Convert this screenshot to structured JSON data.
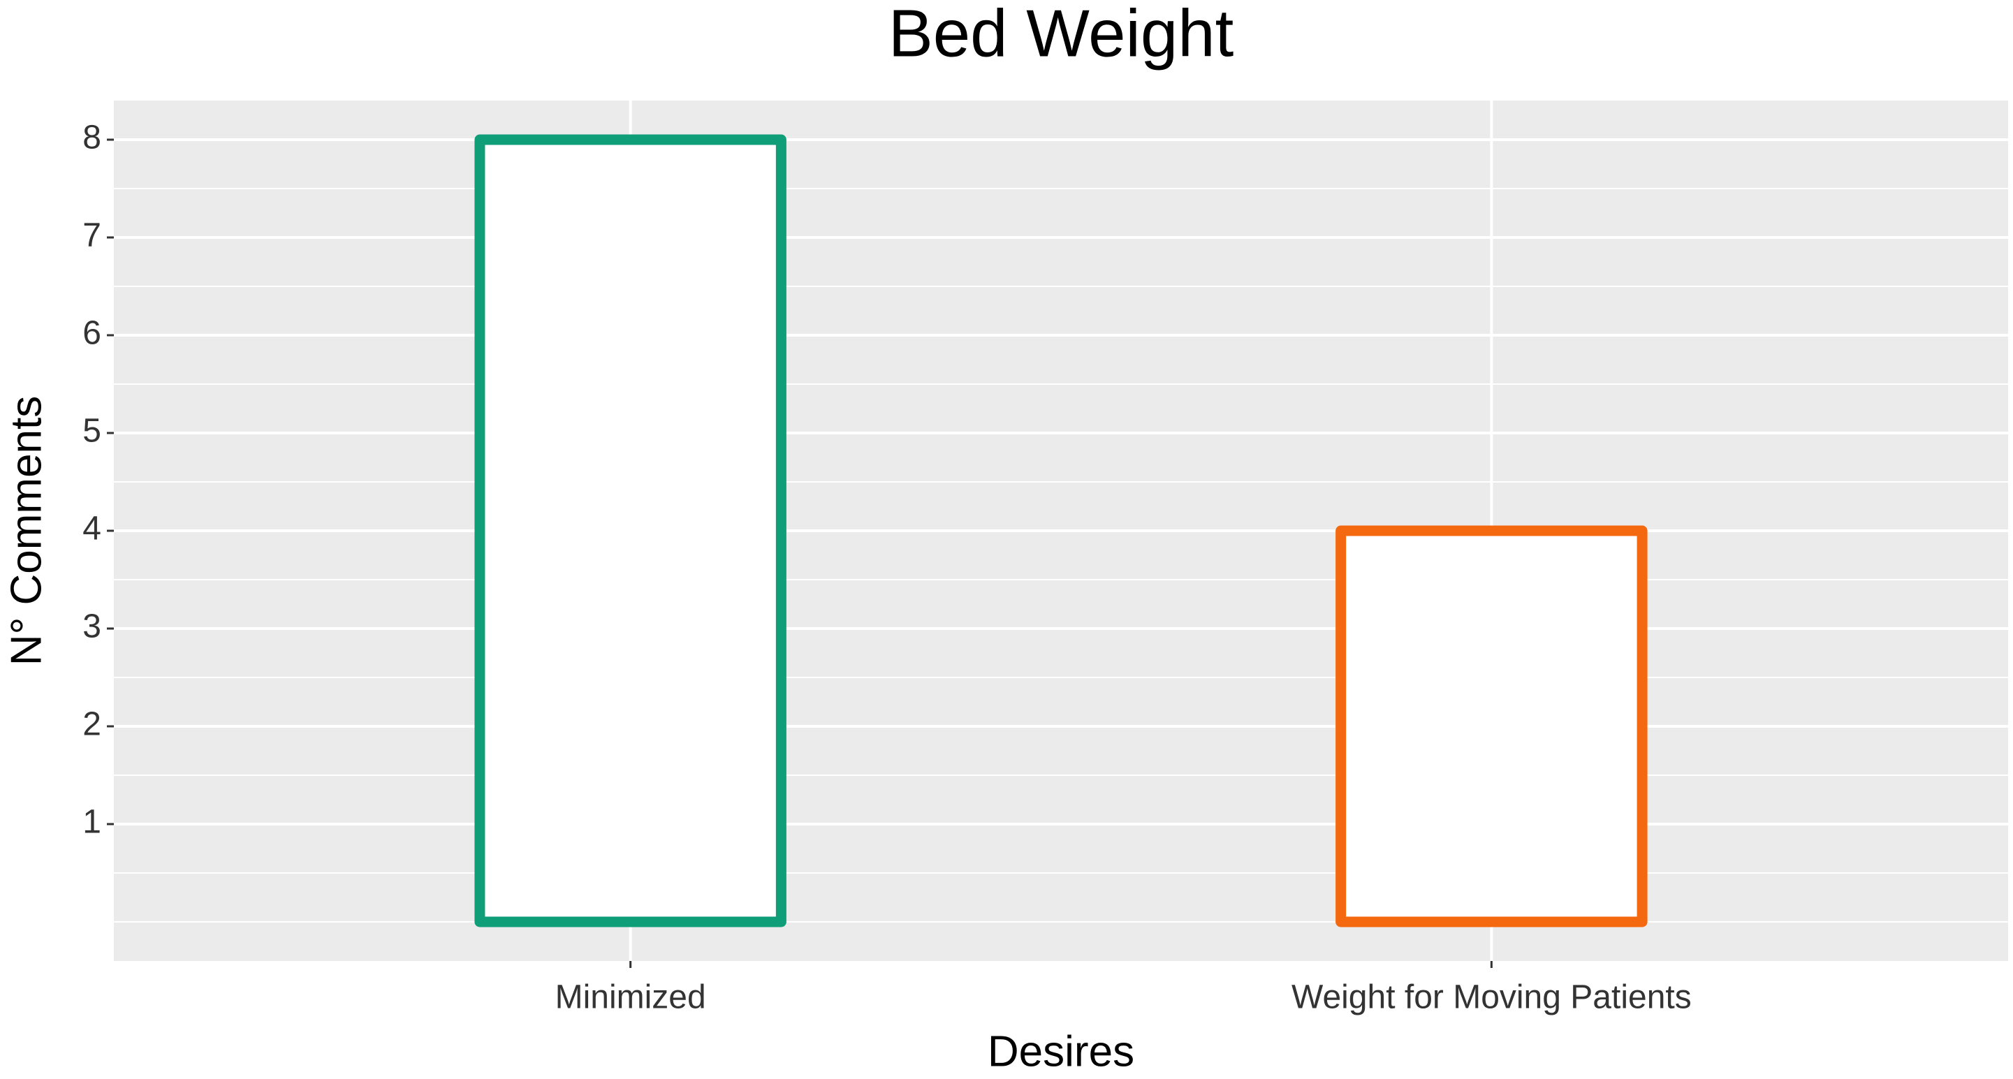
{
  "chart_data": {
    "type": "bar",
    "title": "Bed Weight",
    "x_label": "Desires",
    "y_label": "N° Comments",
    "categories": [
      "Minimized",
      "Weight for Moving Patients"
    ],
    "values": [
      8,
      4
    ],
    "colors": [
      "#0f9e78",
      "#f4690f"
    ],
    "ylim": [
      -0.4,
      8.4
    ],
    "yticks": [
      1,
      2,
      3,
      4,
      5,
      6,
      7,
      8
    ],
    "grid": true
  }
}
